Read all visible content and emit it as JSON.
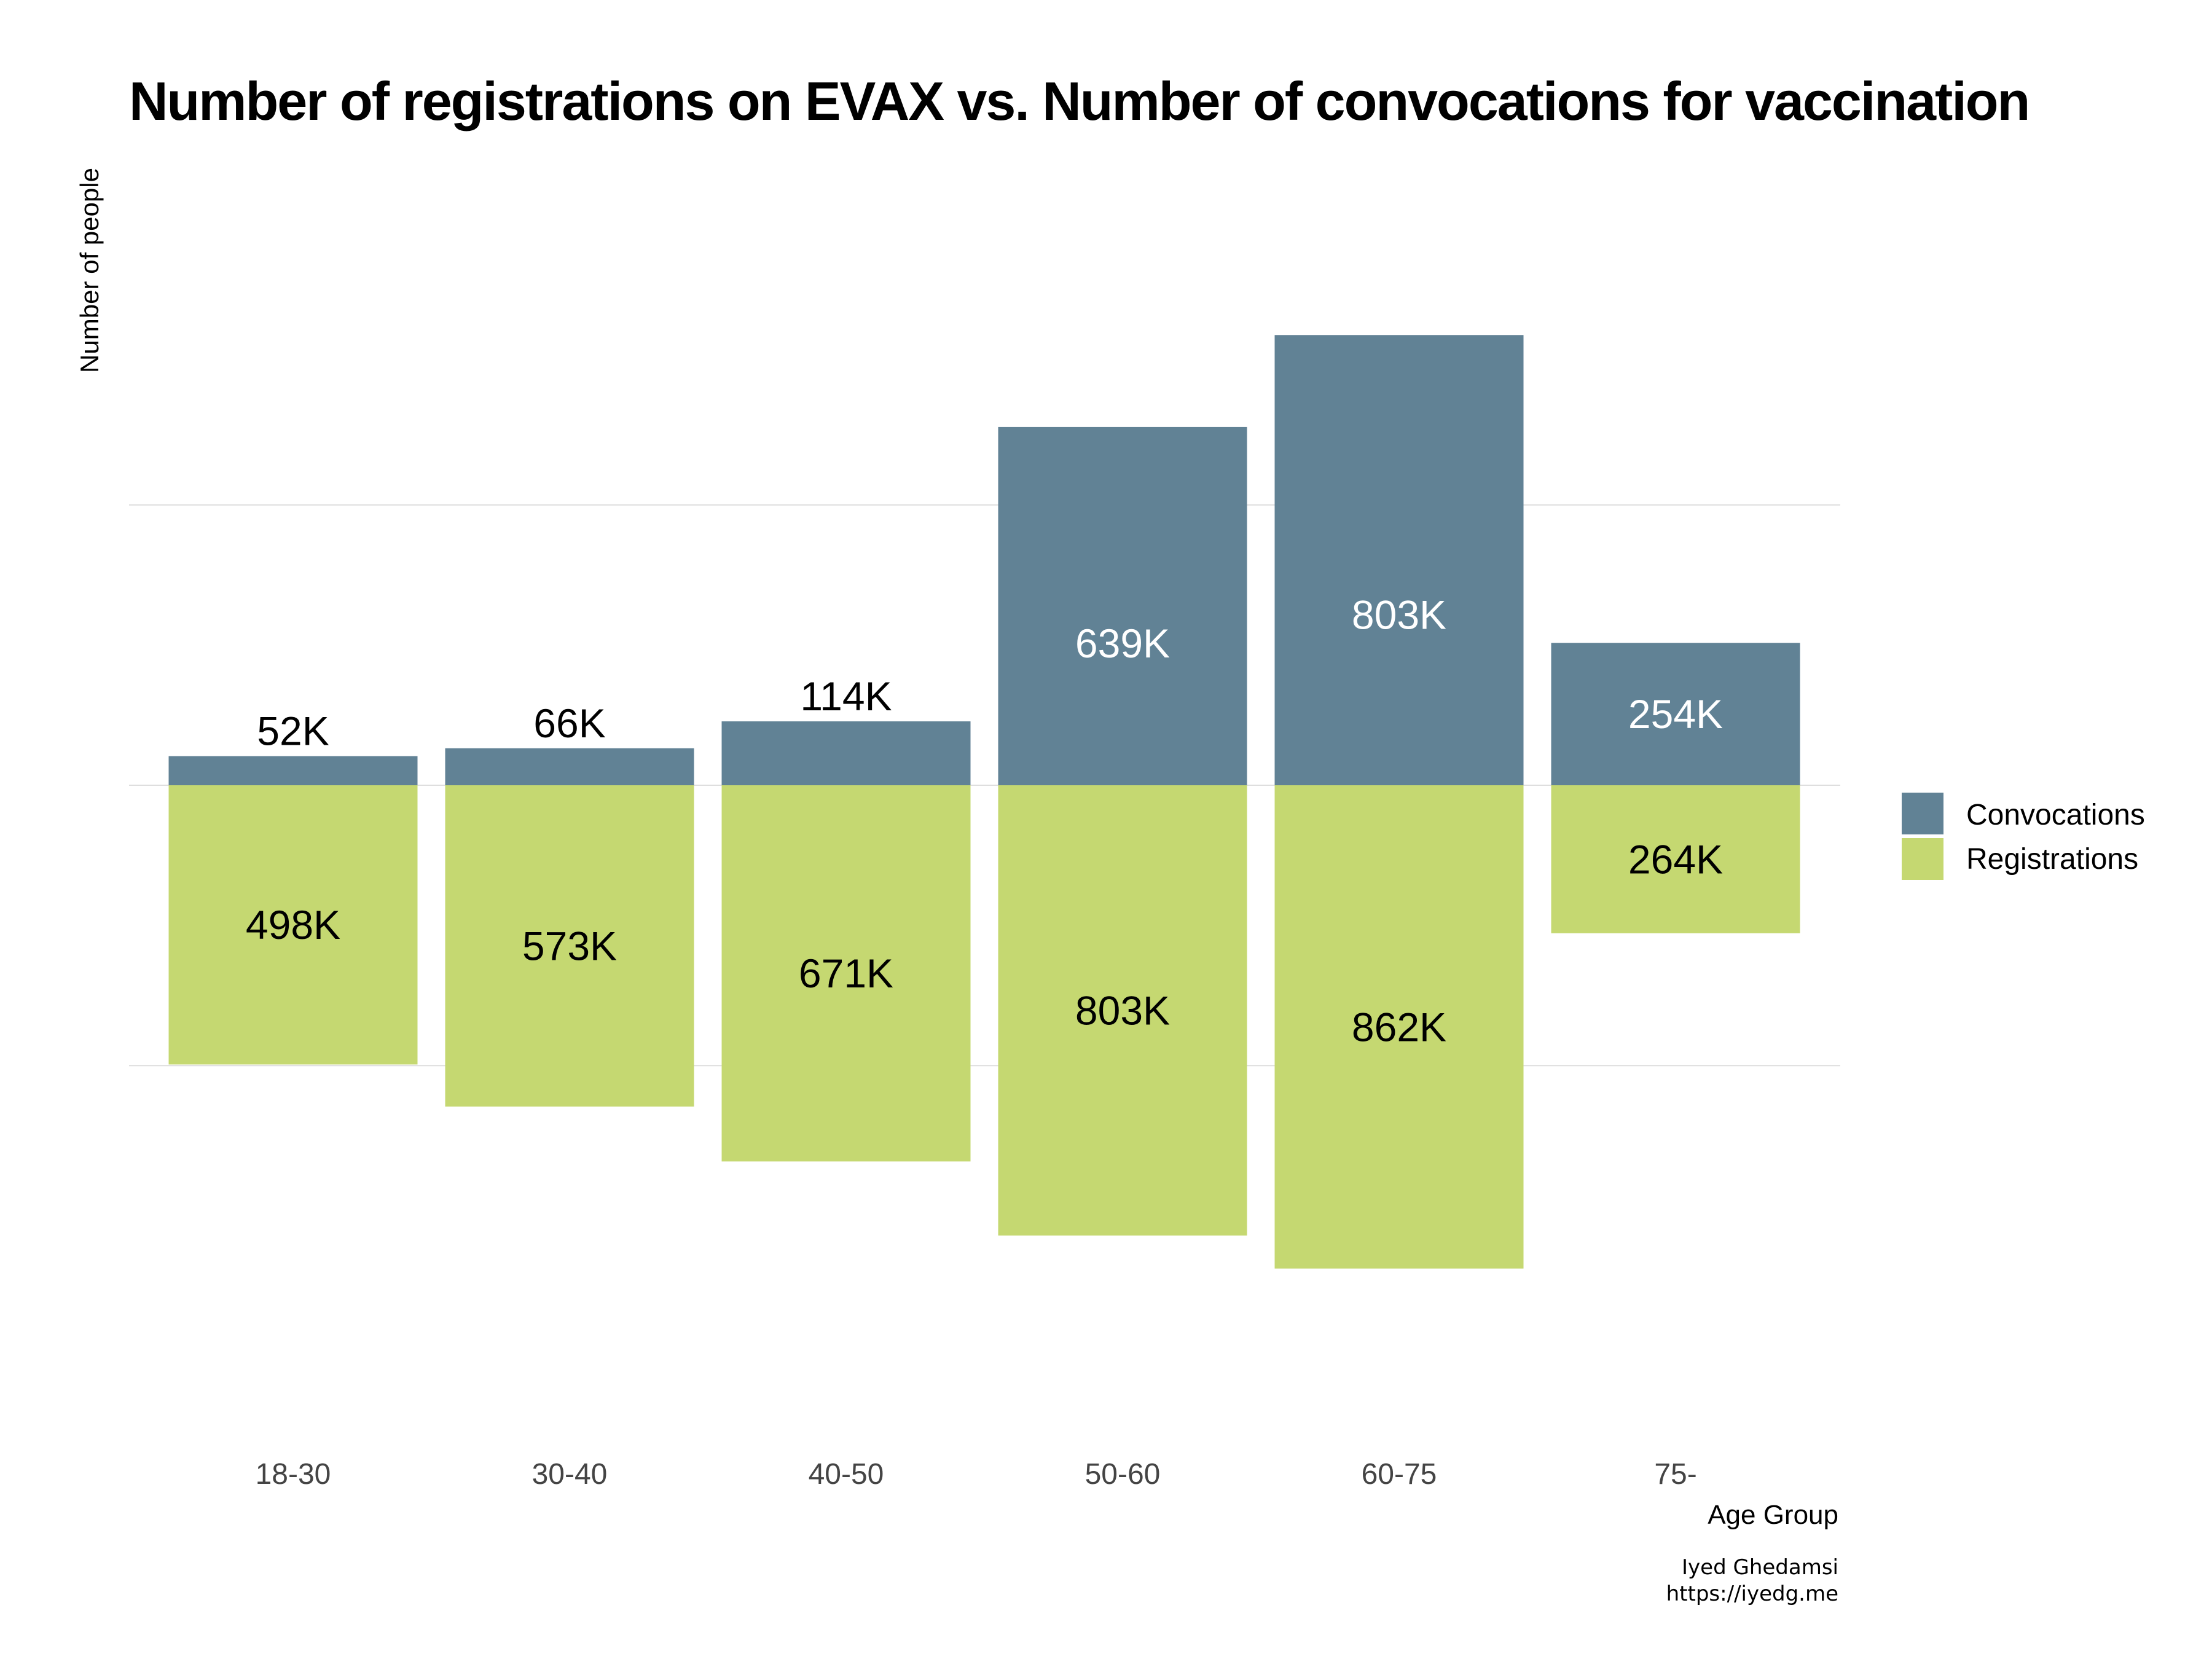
{
  "chart_data": {
    "type": "bar",
    "title": "Number of registrations on EVAX vs. Number of convocations for vaccination",
    "xlabel": "Age Group",
    "ylabel": "Number of people",
    "categories": [
      "18-30",
      "30-40",
      "40-50",
      "50-60",
      "60-75",
      "75-"
    ],
    "series": [
      {
        "name": "Convocations",
        "color": "#618295",
        "label_color": "#000000",
        "values": [
          52,
          66,
          114,
          639,
          803,
          254
        ],
        "labels": [
          "52K",
          "66K",
          "114K",
          "639K",
          "803K",
          "254K"
        ]
      },
      {
        "name": "Registrations",
        "color": "#c5d871",
        "label_color": "#000000",
        "values": [
          498,
          573,
          671,
          803,
          862,
          264
        ],
        "labels": [
          "498K",
          "573K",
          "671K",
          "803K",
          "862K",
          "264K"
        ]
      }
    ],
    "value_unit": "K",
    "layout_note_free": true,
    "ylim": [
      -900,
      800
    ],
    "grid": true,
    "legend": "right",
    "caption": [
      "Iyed Ghedamsi",
      "https://iyedg.me"
    ]
  }
}
